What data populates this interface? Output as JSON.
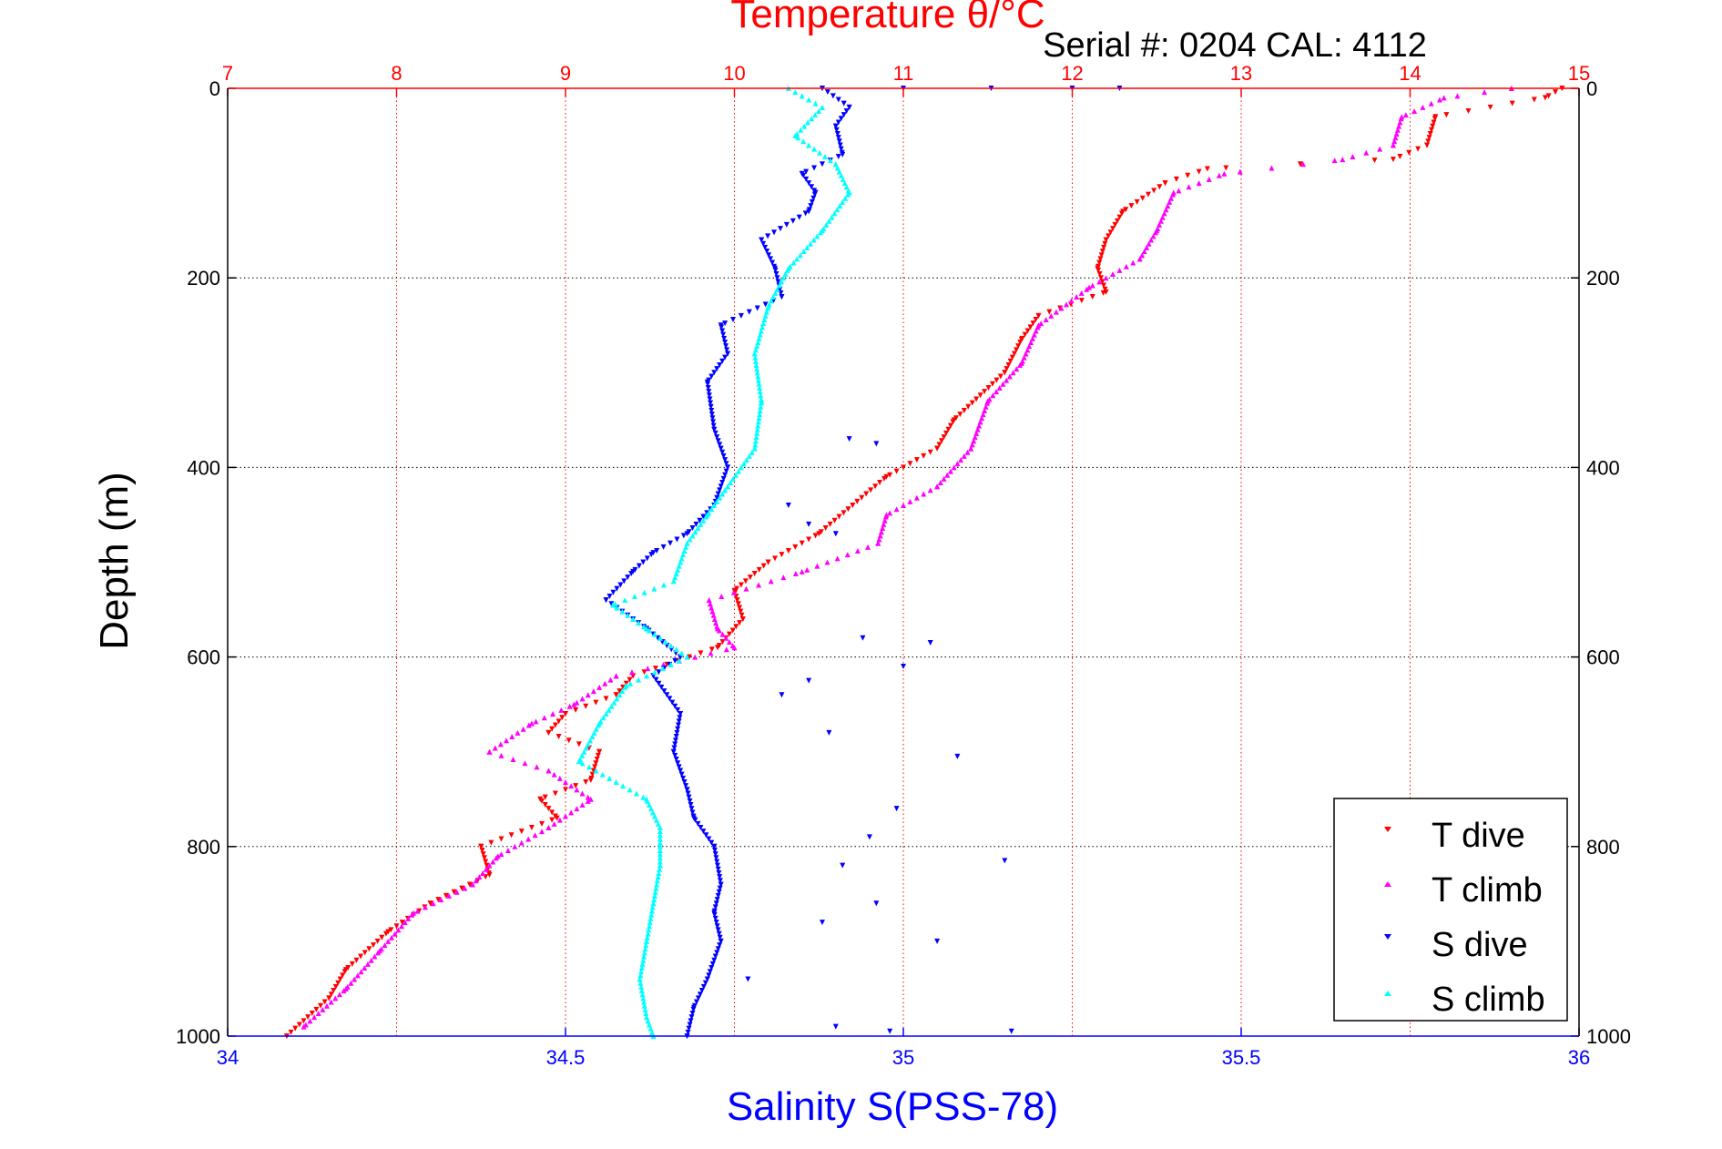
{
  "chart_data": {
    "type": "scatter",
    "title": "Temperature θ/°C",
    "subtitle": "Serial #: 0204  CAL: 4112",
    "ylabel": "Depth (m)",
    "xlabel_bottom": "Salinity S(PSS-78)",
    "ylim": [
      1000,
      0
    ],
    "y_reversed": true,
    "xlim_temperature": [
      7,
      15
    ],
    "xlim_salinity": [
      34,
      36
    ],
    "y_ticks": [
      "0",
      "200",
      "400",
      "600",
      "800",
      "1000"
    ],
    "top_ticks": [
      "7",
      "8",
      "9",
      "10",
      "11",
      "12",
      "13",
      "14",
      "15"
    ],
    "bottom_ticks": [
      "34",
      "34.5",
      "35",
      "35.5",
      "36"
    ],
    "grid": true,
    "legend_position": "bottom-right",
    "colors": {
      "temperature_axis": "#ff0000",
      "salinity_axis": "#0000ff",
      "t_dive": "#ff0000",
      "t_climb": "#ff00ff",
      "s_dive": "#0000ff",
      "s_climb": "#00ffff"
    },
    "series": [
      {
        "name": "T dive",
        "axis": "temperature",
        "color": "#ff0000",
        "depth": [
          0,
          10,
          30,
          60,
          75,
          85,
          100,
          130,
          160,
          190,
          215,
          240,
          265,
          300,
          350,
          380,
          410,
          440,
          470,
          500,
          530,
          560,
          590,
          620,
          640,
          660,
          680,
          700,
          730,
          750,
          770,
          800,
          830,
          860,
          890,
          930,
          960,
          1000
        ],
        "values": [
          14.9,
          14.8,
          14.15,
          14.1,
          13.9,
          12.8,
          12.55,
          12.3,
          12.2,
          12.15,
          12.2,
          11.8,
          11.7,
          11.6,
          11.3,
          11.2,
          10.9,
          10.7,
          10.5,
          10.2,
          10.0,
          10.05,
          9.9,
          9.4,
          9.3,
          9.0,
          8.9,
          9.2,
          9.15,
          8.85,
          8.95,
          8.5,
          8.55,
          8.2,
          7.95,
          7.7,
          7.6,
          7.35
        ]
      },
      {
        "name": "T climb",
        "axis": "temperature",
        "color": "#ff00ff",
        "depth": [
          0,
          10,
          30,
          60,
          75,
          90,
          110,
          150,
          180,
          210,
          250,
          290,
          330,
          380,
          420,
          450,
          480,
          510,
          540,
          570,
          590,
          620,
          650,
          670,
          700,
          720,
          750,
          780,
          810,
          840,
          870,
          910,
          950,
          990
        ],
        "values": [
          14.6,
          14.2,
          13.95,
          13.9,
          13.6,
          12.9,
          12.6,
          12.5,
          12.4,
          12.1,
          11.8,
          11.7,
          11.5,
          11.4,
          11.2,
          10.9,
          10.85,
          10.4,
          9.85,
          9.9,
          10.0,
          9.3,
          9.05,
          8.8,
          8.55,
          8.9,
          9.15,
          8.9,
          8.6,
          8.45,
          8.1,
          7.9,
          7.7,
          7.45
        ]
      },
      {
        "name": "S dive",
        "axis": "salinity",
        "color": "#0000ff",
        "depth": [
          0,
          20,
          40,
          70,
          90,
          110,
          130,
          160,
          190,
          220,
          250,
          280,
          310,
          360,
          400,
          440,
          470,
          490,
          510,
          540,
          570,
          600,
          620,
          660,
          700,
          740,
          770,
          800,
          840,
          870,
          900,
          940,
          970,
          1000
        ],
        "values": [
          34.88,
          34.92,
          34.9,
          34.91,
          34.85,
          34.87,
          34.86,
          34.79,
          34.81,
          34.82,
          34.73,
          34.74,
          34.71,
          34.72,
          34.74,
          34.72,
          34.68,
          34.63,
          34.6,
          34.56,
          34.62,
          34.67,
          34.63,
          34.67,
          34.66,
          34.68,
          34.69,
          34.72,
          34.73,
          34.72,
          34.73,
          34.71,
          34.69,
          34.68
        ]
      },
      {
        "name": "S climb",
        "axis": "salinity",
        "color": "#00ffff",
        "depth": [
          0,
          20,
          50,
          80,
          110,
          150,
          190,
          230,
          280,
          330,
          380,
          420,
          450,
          480,
          520,
          545,
          570,
          600,
          630,
          670,
          710,
          750,
          780,
          820,
          860,
          900,
          940,
          980,
          1000
        ],
        "values": [
          34.83,
          34.88,
          34.84,
          34.9,
          34.92,
          34.88,
          34.83,
          34.8,
          34.78,
          34.79,
          34.78,
          34.74,
          34.71,
          34.68,
          34.66,
          34.57,
          34.62,
          34.68,
          34.59,
          34.55,
          34.52,
          34.62,
          34.64,
          34.64,
          34.63,
          34.62,
          34.61,
          34.62,
          34.63
        ]
      }
    ],
    "outliers_s_dive": [
      {
        "depth": 0,
        "value": 35.0
      },
      {
        "depth": 0,
        "value": 35.13
      },
      {
        "depth": 0,
        "value": 35.25
      },
      {
        "depth": 0,
        "value": 35.32
      },
      {
        "depth": 370,
        "value": 34.92
      },
      {
        "depth": 375,
        "value": 34.96
      },
      {
        "depth": 440,
        "value": 34.83
      },
      {
        "depth": 460,
        "value": 34.86
      },
      {
        "depth": 470,
        "value": 34.9
      },
      {
        "depth": 580,
        "value": 34.94
      },
      {
        "depth": 585,
        "value": 35.04
      },
      {
        "depth": 610,
        "value": 35.0
      },
      {
        "depth": 625,
        "value": 34.86
      },
      {
        "depth": 640,
        "value": 34.82
      },
      {
        "depth": 680,
        "value": 34.89
      },
      {
        "depth": 705,
        "value": 35.08
      },
      {
        "depth": 760,
        "value": 34.99
      },
      {
        "depth": 790,
        "value": 34.95
      },
      {
        "depth": 820,
        "value": 34.91
      },
      {
        "depth": 815,
        "value": 35.15
      },
      {
        "depth": 860,
        "value": 34.96
      },
      {
        "depth": 880,
        "value": 34.88
      },
      {
        "depth": 900,
        "value": 35.05
      },
      {
        "depth": 940,
        "value": 34.77
      },
      {
        "depth": 990,
        "value": 34.9
      },
      {
        "depth": 995,
        "value": 35.16
      },
      {
        "depth": 995,
        "value": 34.98
      }
    ],
    "legend": [
      "T dive",
      "T climb",
      "S dive",
      "S climb"
    ]
  }
}
